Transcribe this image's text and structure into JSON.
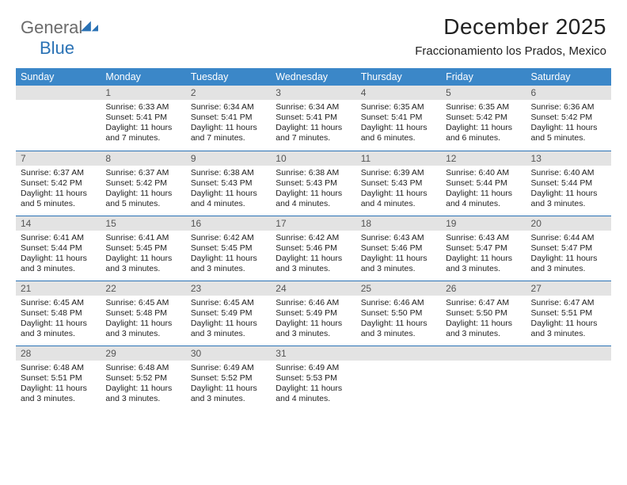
{
  "logo": {
    "part1": "General",
    "part2": "Blue"
  },
  "title": "December 2025",
  "location": "Fraccionamiento los Prados, Mexico",
  "colors": {
    "header_bg": "#3b87c8",
    "header_text": "#ffffff",
    "daynum_bg": "#e3e3e3",
    "daynum_text": "#555555",
    "rule": "#2a72b5",
    "body_text": "#222222",
    "logo_gray": "#6b6b6b",
    "logo_blue": "#2a72b5"
  },
  "weekdays": [
    "Sunday",
    "Monday",
    "Tuesday",
    "Wednesday",
    "Thursday",
    "Friday",
    "Saturday"
  ],
  "weeks": [
    [
      null,
      {
        "n": "1",
        "sr": "6:33 AM",
        "ss": "5:41 PM",
        "dl": "11 hours and 7 minutes."
      },
      {
        "n": "2",
        "sr": "6:34 AM",
        "ss": "5:41 PM",
        "dl": "11 hours and 7 minutes."
      },
      {
        "n": "3",
        "sr": "6:34 AM",
        "ss": "5:41 PM",
        "dl": "11 hours and 7 minutes."
      },
      {
        "n": "4",
        "sr": "6:35 AM",
        "ss": "5:41 PM",
        "dl": "11 hours and 6 minutes."
      },
      {
        "n": "5",
        "sr": "6:35 AM",
        "ss": "5:42 PM",
        "dl": "11 hours and 6 minutes."
      },
      {
        "n": "6",
        "sr": "6:36 AM",
        "ss": "5:42 PM",
        "dl": "11 hours and 5 minutes."
      }
    ],
    [
      {
        "n": "7",
        "sr": "6:37 AM",
        "ss": "5:42 PM",
        "dl": "11 hours and 5 minutes."
      },
      {
        "n": "8",
        "sr": "6:37 AM",
        "ss": "5:42 PM",
        "dl": "11 hours and 5 minutes."
      },
      {
        "n": "9",
        "sr": "6:38 AM",
        "ss": "5:43 PM",
        "dl": "11 hours and 4 minutes."
      },
      {
        "n": "10",
        "sr": "6:38 AM",
        "ss": "5:43 PM",
        "dl": "11 hours and 4 minutes."
      },
      {
        "n": "11",
        "sr": "6:39 AM",
        "ss": "5:43 PM",
        "dl": "11 hours and 4 minutes."
      },
      {
        "n": "12",
        "sr": "6:40 AM",
        "ss": "5:44 PM",
        "dl": "11 hours and 4 minutes."
      },
      {
        "n": "13",
        "sr": "6:40 AM",
        "ss": "5:44 PM",
        "dl": "11 hours and 3 minutes."
      }
    ],
    [
      {
        "n": "14",
        "sr": "6:41 AM",
        "ss": "5:44 PM",
        "dl": "11 hours and 3 minutes."
      },
      {
        "n": "15",
        "sr": "6:41 AM",
        "ss": "5:45 PM",
        "dl": "11 hours and 3 minutes."
      },
      {
        "n": "16",
        "sr": "6:42 AM",
        "ss": "5:45 PM",
        "dl": "11 hours and 3 minutes."
      },
      {
        "n": "17",
        "sr": "6:42 AM",
        "ss": "5:46 PM",
        "dl": "11 hours and 3 minutes."
      },
      {
        "n": "18",
        "sr": "6:43 AM",
        "ss": "5:46 PM",
        "dl": "11 hours and 3 minutes."
      },
      {
        "n": "19",
        "sr": "6:43 AM",
        "ss": "5:47 PM",
        "dl": "11 hours and 3 minutes."
      },
      {
        "n": "20",
        "sr": "6:44 AM",
        "ss": "5:47 PM",
        "dl": "11 hours and 3 minutes."
      }
    ],
    [
      {
        "n": "21",
        "sr": "6:45 AM",
        "ss": "5:48 PM",
        "dl": "11 hours and 3 minutes."
      },
      {
        "n": "22",
        "sr": "6:45 AM",
        "ss": "5:48 PM",
        "dl": "11 hours and 3 minutes."
      },
      {
        "n": "23",
        "sr": "6:45 AM",
        "ss": "5:49 PM",
        "dl": "11 hours and 3 minutes."
      },
      {
        "n": "24",
        "sr": "6:46 AM",
        "ss": "5:49 PM",
        "dl": "11 hours and 3 minutes."
      },
      {
        "n": "25",
        "sr": "6:46 AM",
        "ss": "5:50 PM",
        "dl": "11 hours and 3 minutes."
      },
      {
        "n": "26",
        "sr": "6:47 AM",
        "ss": "5:50 PM",
        "dl": "11 hours and 3 minutes."
      },
      {
        "n": "27",
        "sr": "6:47 AM",
        "ss": "5:51 PM",
        "dl": "11 hours and 3 minutes."
      }
    ],
    [
      {
        "n": "28",
        "sr": "6:48 AM",
        "ss": "5:51 PM",
        "dl": "11 hours and 3 minutes."
      },
      {
        "n": "29",
        "sr": "6:48 AM",
        "ss": "5:52 PM",
        "dl": "11 hours and 3 minutes."
      },
      {
        "n": "30",
        "sr": "6:49 AM",
        "ss": "5:52 PM",
        "dl": "11 hours and 3 minutes."
      },
      {
        "n": "31",
        "sr": "6:49 AM",
        "ss": "5:53 PM",
        "dl": "11 hours and 4 minutes."
      },
      null,
      null,
      null
    ]
  ],
  "labels": {
    "sunrise": "Sunrise:",
    "sunset": "Sunset:",
    "daylight": "Daylight:"
  }
}
